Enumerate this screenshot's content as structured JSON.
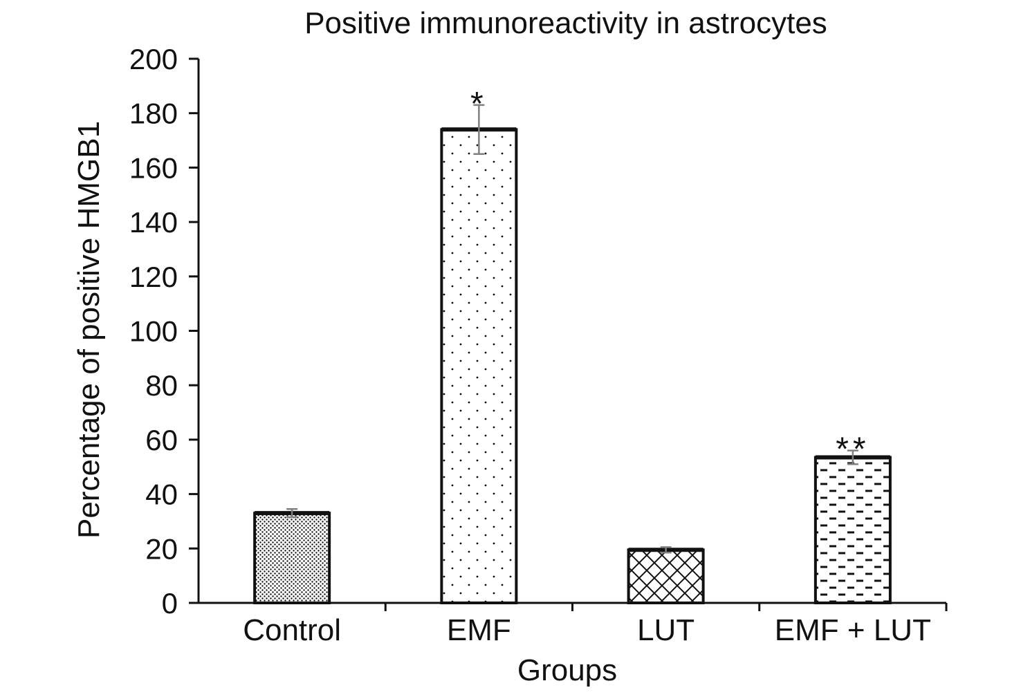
{
  "chart_data": {
    "type": "bar",
    "title": "Positive immunoreactivity in astrocytes",
    "xlabel": "Groups",
    "ylabel": "Percentage of positive HMGB1",
    "ylim": [
      0,
      200
    ],
    "yticks": [
      0,
      20,
      40,
      60,
      80,
      100,
      120,
      140,
      160,
      180,
      200
    ],
    "grid": false,
    "legend": "none",
    "categories": [
      "Control",
      "EMF",
      "LUT",
      "EMF + LUT"
    ],
    "values": [
      33,
      174,
      19.5,
      53.5
    ],
    "errors": [
      1.5,
      9,
      1,
      2.5
    ],
    "annotations": [
      "",
      "*",
      "",
      "**"
    ],
    "patterns": [
      "dense-dots",
      "sparse-dots",
      "crosshatch",
      "dashes"
    ],
    "colors": {
      "bar_outline": "#111111",
      "axis": "#111111",
      "error_bar": "#7f7f7f",
      "fill": "#ffffff"
    }
  }
}
